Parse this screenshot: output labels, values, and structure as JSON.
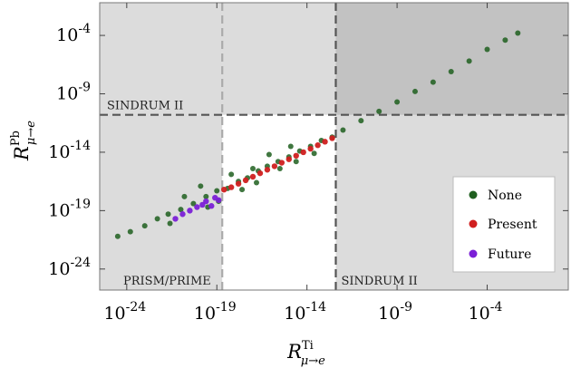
{
  "chart_data": {
    "type": "scatter",
    "title": "",
    "xlabel": {
      "base": "R",
      "sup": "Ti",
      "sub": "μ→e"
    },
    "ylabel": {
      "base": "R",
      "sup": "Pb",
      "sub": "μ→e"
    },
    "xscale": "log",
    "yscale": "log",
    "xlim_log10": [
      -25.5,
      0.5
    ],
    "ylim_log10": [
      -25.8,
      -1.2
    ],
    "x_ticks": [
      {
        "exp": -24,
        "label": "10",
        "sup": "-24"
      },
      {
        "exp": -19,
        "label": "10",
        "sup": "-19"
      },
      {
        "exp": -14,
        "label": "10",
        "sup": "-14"
      },
      {
        "exp": -9,
        "label": "10",
        "sup": "-9"
      },
      {
        "exp": -4,
        "label": "10",
        "sup": "-4"
      }
    ],
    "y_ticks": [
      {
        "exp": -24,
        "label": "10",
        "sup": "-24"
      },
      {
        "exp": -19,
        "label": "10",
        "sup": "-19"
      },
      {
        "exp": -14,
        "label": "10",
        "sup": "-14"
      },
      {
        "exp": -9,
        "label": "10",
        "sup": "-9"
      },
      {
        "exp": -4,
        "label": "10",
        "sup": "-4"
      }
    ],
    "limits": [
      {
        "axis": "x",
        "log10": -18.7,
        "style": "dashed",
        "color": "#aaaaaa",
        "label": "PRISM/PRIME"
      },
      {
        "axis": "x",
        "log10": -12.4,
        "style": "dashed",
        "color": "#555555",
        "label": "SINDRUM II"
      },
      {
        "axis": "y",
        "log10": -10.8,
        "style": "dashed",
        "color": "#555555",
        "label": "SINDRUM II"
      }
    ],
    "shading": {
      "light": "#dcdcdc",
      "dark": "#c2c2c2"
    },
    "series": [
      {
        "name": "None",
        "color": "#1f5f1f",
        "points_log10": [
          [
            -24.5,
            -21.2
          ],
          [
            -23.8,
            -20.8
          ],
          [
            -23,
            -20.3
          ],
          [
            -22.3,
            -19.7
          ],
          [
            -21.7,
            -19.3
          ],
          [
            -21,
            -18.9
          ],
          [
            -20.3,
            -18.4
          ],
          [
            -19.6,
            -17.8
          ],
          [
            -19,
            -17.3
          ],
          [
            -18.4,
            -17.1
          ],
          [
            -17.8,
            -16.5
          ],
          [
            -17.3,
            -16.2
          ],
          [
            -16.7,
            -15.6
          ],
          [
            -16.2,
            -15.2
          ],
          [
            -15.6,
            -14.8
          ],
          [
            -15,
            -14.4
          ],
          [
            -14.4,
            -13.9
          ],
          [
            -13.8,
            -13.5
          ],
          [
            -13.2,
            -13
          ],
          [
            -12.6,
            -12.7
          ],
          [
            -12,
            -12.1
          ],
          [
            -11,
            -11.3
          ],
          [
            -10,
            -10.5
          ],
          [
            -9,
            -9.7
          ],
          [
            -8,
            -8.8
          ],
          [
            -7,
            -8
          ],
          [
            -6,
            -7.1
          ],
          [
            -5,
            -6.2
          ],
          [
            -4,
            -5.2
          ],
          [
            -3,
            -4.4
          ],
          [
            -2.3,
            -3.8
          ],
          [
            -20.8,
            -17.8
          ],
          [
            -19.9,
            -16.9
          ],
          [
            -18.2,
            -15.9
          ],
          [
            -17,
            -15.4
          ],
          [
            -16.1,
            -14.2
          ],
          [
            -14.9,
            -13.5
          ],
          [
            -21.6,
            -20.1
          ],
          [
            -19.5,
            -18.7
          ],
          [
            -17.6,
            -17.2
          ],
          [
            -15.5,
            -15.4
          ],
          [
            -13.6,
            -14.1
          ],
          [
            -18.9,
            -18.2
          ],
          [
            -16.8,
            -16.6
          ],
          [
            -14.6,
            -14.8
          ]
        ]
      },
      {
        "name": "Present",
        "color": "#d01f1f",
        "points_log10": [
          [
            -18.6,
            -17.2
          ],
          [
            -18.2,
            -17
          ],
          [
            -17.8,
            -16.7
          ],
          [
            -17.4,
            -16.4
          ],
          [
            -17,
            -16.1
          ],
          [
            -16.6,
            -15.8
          ],
          [
            -16.2,
            -15.5
          ],
          [
            -15.8,
            -15.2
          ],
          [
            -15.4,
            -14.9
          ],
          [
            -15,
            -14.6
          ],
          [
            -14.6,
            -14.3
          ],
          [
            -14.2,
            -14
          ],
          [
            -13.8,
            -13.7
          ],
          [
            -13.4,
            -13.4
          ],
          [
            -13,
            -13.1
          ],
          [
            -12.6,
            -12.8
          ]
        ]
      },
      {
        "name": "Future",
        "color": "#7a1fd6",
        "points_log10": [
          [
            -21.3,
            -19.7
          ],
          [
            -20.9,
            -19.3
          ],
          [
            -20.5,
            -19
          ],
          [
            -20.1,
            -18.7
          ],
          [
            -19.8,
            -18.5
          ],
          [
            -19.6,
            -18.2
          ],
          [
            -19.3,
            -18.6
          ],
          [
            -19.1,
            -17.9
          ],
          [
            -18.9,
            -18.1
          ]
        ]
      }
    ],
    "legend": {
      "position": "bottom-right",
      "entries": [
        "None",
        "Present",
        "Future"
      ]
    }
  }
}
